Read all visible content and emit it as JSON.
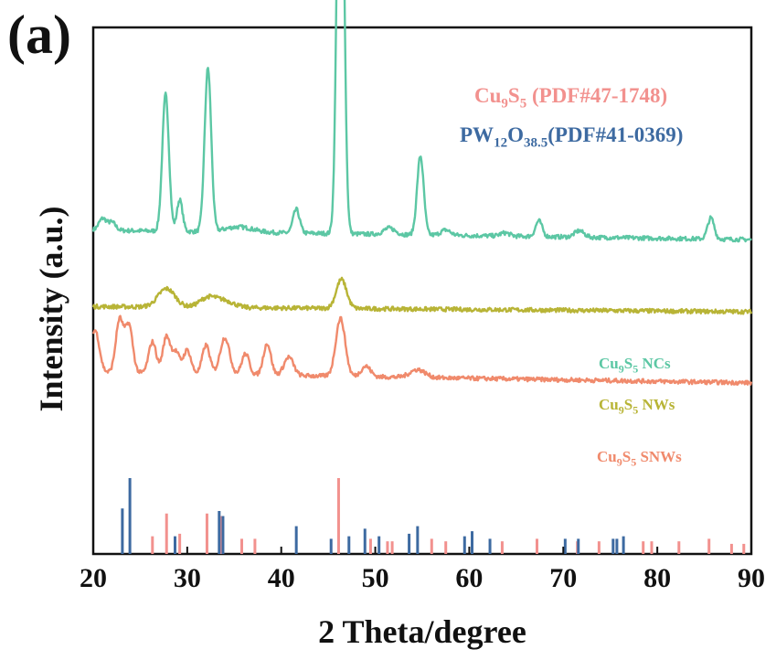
{
  "panel_label": "(a)",
  "chart_data": {
    "type": "line",
    "xlabel": "2 Theta/degree",
    "ylabel": "Intensity (a.u.)",
    "xlim": [
      20,
      90
    ],
    "xticks": [
      "20",
      "30",
      "40",
      "50",
      "60",
      "70",
      "80",
      "90"
    ],
    "series": [
      {
        "name": "Cu9S5 NCs",
        "label_main": "Cu",
        "label_sub1": "9",
        "label_mid": "S",
        "label_sub2": "5",
        "label_tail": " NCs",
        "color": "#5cc7a4",
        "baseline": 0.615,
        "peaks": [
          [
            21.0,
            0.022,
            0.4
          ],
          [
            22.0,
            0.015,
            0.4
          ],
          [
            27.7,
            0.26,
            0.35
          ],
          [
            29.2,
            0.06,
            0.3
          ],
          [
            32.2,
            0.31,
            0.35
          ],
          [
            35.5,
            0.01,
            1.5
          ],
          [
            41.6,
            0.045,
            0.35
          ],
          [
            46.3,
            0.99,
            0.35
          ],
          [
            51.5,
            0.012,
            0.6
          ],
          [
            54.8,
            0.15,
            0.35
          ],
          [
            57.5,
            0.01,
            0.5
          ],
          [
            63.8,
            0.006,
            0.5
          ],
          [
            67.4,
            0.03,
            0.35
          ],
          [
            71.7,
            0.012,
            0.5
          ],
          [
            85.7,
            0.04,
            0.35
          ]
        ],
        "slope": 0.018
      },
      {
        "name": "Cu9S5 NWs",
        "label_main": "Cu",
        "label_sub1": "9",
        "label_mid": "S",
        "label_sub2": "5",
        "label_tail": " NWs",
        "color": "#b8b436",
        "baseline": 0.47,
        "peaks": [
          [
            27.8,
            0.035,
            0.9
          ],
          [
            32.2,
            0.018,
            0.9
          ],
          [
            34.0,
            0.012,
            1.0
          ],
          [
            46.4,
            0.055,
            0.55
          ]
        ],
        "slope": 0.01
      },
      {
        "name": "Cu9S5 SNWs",
        "label_main": "Cu",
        "label_sub1": "9",
        "label_mid": "S",
        "label_sub2": "5",
        "label_tail": " SNWs",
        "color": "#f08a6c",
        "baseline": 0.345,
        "peaks": [
          [
            20.2,
            0.08,
            0.45
          ],
          [
            22.8,
            0.1,
            0.4
          ],
          [
            23.8,
            0.09,
            0.4
          ],
          [
            26.3,
            0.06,
            0.4
          ],
          [
            27.8,
            0.07,
            0.4
          ],
          [
            28.8,
            0.04,
            0.4
          ],
          [
            30.0,
            0.045,
            0.4
          ],
          [
            32.0,
            0.055,
            0.4
          ],
          [
            34.0,
            0.07,
            0.5
          ],
          [
            36.2,
            0.04,
            0.4
          ],
          [
            38.5,
            0.06,
            0.4
          ],
          [
            40.8,
            0.035,
            0.5
          ],
          [
            46.3,
            0.11,
            0.5
          ],
          [
            49.0,
            0.02,
            0.5
          ],
          [
            54.5,
            0.015,
            0.8
          ]
        ],
        "slope": 0.02
      }
    ],
    "references": [
      {
        "name": "Cu9S5 (PDF#47-1748)",
        "label_main": "Cu",
        "label_sub1": "9",
        "label_mid": "S",
        "label_sub2": "5",
        "label_tail": " (PDF#47-1748)",
        "color": "#f2918e",
        "lines": [
          [
            26.3,
            0.07
          ],
          [
            27.8,
            0.16
          ],
          [
            29.2,
            0.08
          ],
          [
            32.1,
            0.16
          ],
          [
            33.6,
            0.15
          ],
          [
            35.8,
            0.06
          ],
          [
            37.2,
            0.06
          ],
          [
            46.1,
            0.3
          ],
          [
            49.5,
            0.06
          ],
          [
            51.3,
            0.05
          ],
          [
            51.8,
            0.05
          ],
          [
            56.0,
            0.06
          ],
          [
            57.5,
            0.05
          ],
          [
            63.5,
            0.05
          ],
          [
            67.2,
            0.06
          ],
          [
            71.5,
            0.05
          ],
          [
            73.8,
            0.05
          ],
          [
            78.5,
            0.05
          ],
          [
            79.4,
            0.05
          ],
          [
            82.3,
            0.05
          ],
          [
            85.5,
            0.06
          ],
          [
            87.9,
            0.04
          ],
          [
            89.2,
            0.04
          ]
        ]
      },
      {
        "name": "PW12O38.5(PDF#41-0369)",
        "label_main": "PW",
        "label_sub1": "12",
        "label_mid": "O",
        "label_sub2": "38.5",
        "label_tail": "(PDF#41-0369)",
        "color": "#3d6aa1",
        "lines": [
          [
            23.1,
            0.18
          ],
          [
            23.9,
            0.3
          ],
          [
            28.7,
            0.07
          ],
          [
            33.4,
            0.17
          ],
          [
            33.8,
            0.15
          ],
          [
            41.6,
            0.11
          ],
          [
            45.3,
            0.06
          ],
          [
            47.2,
            0.07
          ],
          [
            48.9,
            0.1
          ],
          [
            50.4,
            0.07
          ],
          [
            53.6,
            0.08
          ],
          [
            54.5,
            0.11
          ],
          [
            59.5,
            0.07
          ],
          [
            60.3,
            0.09
          ],
          [
            62.2,
            0.06
          ],
          [
            70.2,
            0.06
          ],
          [
            71.6,
            0.06
          ],
          [
            75.3,
            0.06
          ],
          [
            75.7,
            0.06
          ],
          [
            76.4,
            0.07
          ]
        ]
      }
    ]
  }
}
